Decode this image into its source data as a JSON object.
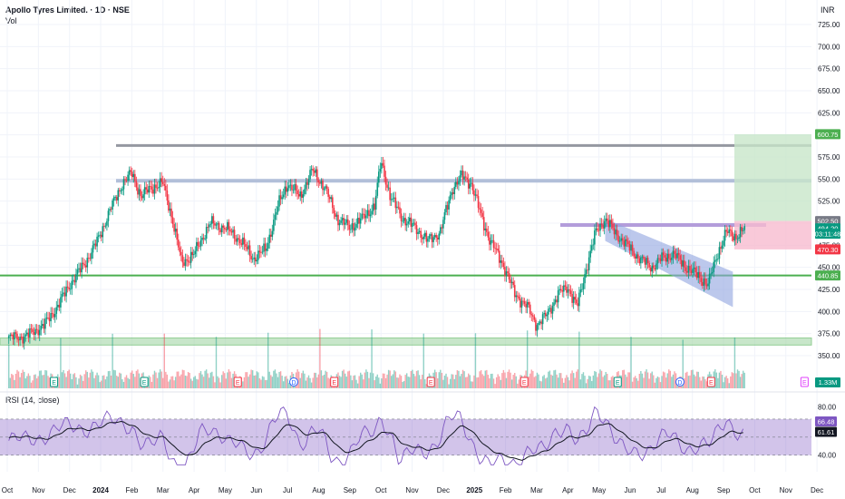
{
  "header": {
    "title": "Apollo Tyres Limited. · 1D · NSE",
    "volume_label": "Vol",
    "currency": "INR",
    "rsi_label": "RSI (14, close)"
  },
  "chart_data": [
    {
      "type": "candlestick",
      "title": "Apollo Tyres Limited. · 1D · NSE",
      "y_axis_labels": [
        "725.00",
        "700.00",
        "675.00",
        "650.00",
        "625.00",
        "600.00",
        "575.00",
        "550.00",
        "525.00",
        "500.00",
        "475.00",
        "450.00",
        "425.00",
        "400.00",
        "375.00",
        "350.00"
      ],
      "ylim": [
        350,
        725
      ],
      "x_axis_labels": [
        "Oct",
        "Nov",
        "Dec",
        "2024",
        "Feb",
        "Mar",
        "Apr",
        "May",
        "Jun",
        "Jul",
        "Aug",
        "Sep",
        "Oct",
        "Nov",
        "Dec",
        "2025",
        "Feb",
        "Mar",
        "Apr",
        "May",
        "Jun",
        "Jul",
        "Aug",
        "Sep",
        "Oct",
        "Nov",
        "Dec"
      ],
      "close_series": [
        {
          "t": 0,
          "v": 370
        },
        {
          "t": 0.6,
          "v": 372
        },
        {
          "t": 1.2,
          "v": 385
        },
        {
          "t": 1.6,
          "v": 405
        },
        {
          "t": 2.0,
          "v": 430
        },
        {
          "t": 2.5,
          "v": 455
        },
        {
          "t": 2.9,
          "v": 480
        },
        {
          "t": 3.3,
          "v": 515
        },
        {
          "t": 3.7,
          "v": 545
        },
        {
          "t": 4.0,
          "v": 557
        },
        {
          "t": 4.3,
          "v": 530
        },
        {
          "t": 4.6,
          "v": 540
        },
        {
          "t": 5.0,
          "v": 545
        },
        {
          "t": 5.3,
          "v": 505
        },
        {
          "t": 5.6,
          "v": 455
        },
        {
          "t": 6.0,
          "v": 465
        },
        {
          "t": 6.5,
          "v": 500
        },
        {
          "t": 7.0,
          "v": 495
        },
        {
          "t": 7.5,
          "v": 480
        },
        {
          "t": 7.9,
          "v": 460
        },
        {
          "t": 8.3,
          "v": 470
        },
        {
          "t": 8.7,
          "v": 520
        },
        {
          "t": 9.0,
          "v": 545
        },
        {
          "t": 9.4,
          "v": 530
        },
        {
          "t": 9.8,
          "v": 560
        },
        {
          "t": 10.2,
          "v": 540
        },
        {
          "t": 10.6,
          "v": 505
        },
        {
          "t": 11.0,
          "v": 495
        },
        {
          "t": 11.4,
          "v": 505
        },
        {
          "t": 11.8,
          "v": 520
        },
        {
          "t": 12.0,
          "v": 570
        },
        {
          "t": 12.3,
          "v": 530
        },
        {
          "t": 12.7,
          "v": 505
        },
        {
          "t": 13.1,
          "v": 495
        },
        {
          "t": 13.5,
          "v": 480
        },
        {
          "t": 13.9,
          "v": 490
        },
        {
          "t": 14.3,
          "v": 540
        },
        {
          "t": 14.6,
          "v": 553
        },
        {
          "t": 14.9,
          "v": 545
        },
        {
          "t": 15.2,
          "v": 510
        },
        {
          "t": 15.5,
          "v": 480
        },
        {
          "t": 15.9,
          "v": 455
        },
        {
          "t": 16.3,
          "v": 420
        },
        {
          "t": 16.7,
          "v": 405
        },
        {
          "t": 17.0,
          "v": 385
        },
        {
          "t": 17.3,
          "v": 395
        },
        {
          "t": 17.7,
          "v": 420
        },
        {
          "t": 18.0,
          "v": 428
        },
        {
          "t": 18.3,
          "v": 405
        },
        {
          "t": 18.6,
          "v": 450
        },
        {
          "t": 18.9,
          "v": 490
        },
        {
          "t": 19.2,
          "v": 505
        },
        {
          "t": 19.5,
          "v": 490
        },
        {
          "t": 19.9,
          "v": 475
        },
        {
          "t": 20.3,
          "v": 460
        },
        {
          "t": 20.7,
          "v": 450
        },
        {
          "t": 21.0,
          "v": 460
        },
        {
          "t": 21.4,
          "v": 465
        },
        {
          "t": 21.8,
          "v": 450
        },
        {
          "t": 22.2,
          "v": 440
        },
        {
          "t": 22.5,
          "v": 430
        },
        {
          "t": 22.8,
          "v": 465
        },
        {
          "t": 23.1,
          "v": 490
        },
        {
          "t": 23.4,
          "v": 485
        },
        {
          "t": 23.7,
          "v": 494.2
        }
      ],
      "horizontal_levels": [
        588,
        548,
        498,
        440.85
      ],
      "support_zone": [
        362,
        370
      ],
      "descending_channel": {
        "from": {
          "t": 19.2,
          "upper": 505,
          "lower": 480
        },
        "to": {
          "t": 23.3,
          "upper": 445,
          "lower": 405
        }
      },
      "position_tool": {
        "entry": 502.5,
        "target": 600.75,
        "stop": 470.3
      },
      "price_labels": [
        {
          "text": "600.75",
          "color": "#4caf50",
          "value": 600.75
        },
        {
          "text": "502.50",
          "color": "#787b86",
          "value": 502.5
        },
        {
          "text": "494.20",
          "color": "#089981",
          "value": 494.2
        },
        {
          "text": "03:11:48",
          "color": "#089981",
          "value": 488
        },
        {
          "text": "470.30",
          "color": "#f23645",
          "value": 470.3
        },
        {
          "text": "440.85",
          "color": "#4caf50",
          "value": 440.85
        }
      ],
      "event_markers": [
        {
          "t": 1.5,
          "kind": "E",
          "color": "#089981"
        },
        {
          "t": 4.4,
          "kind": "E",
          "color": "#089981"
        },
        {
          "t": 7.4,
          "kind": "E",
          "color": "#f23645"
        },
        {
          "t": 9.2,
          "kind": "D",
          "color": "#2962ff"
        },
        {
          "t": 10.5,
          "kind": "E",
          "color": "#f23645"
        },
        {
          "t": 13.6,
          "kind": "E",
          "color": "#f23645"
        },
        {
          "t": 16.6,
          "kind": "E",
          "color": "#f23645"
        },
        {
          "t": 19.6,
          "kind": "E",
          "color": "#089981"
        },
        {
          "t": 21.6,
          "kind": "D",
          "color": "#2962ff"
        },
        {
          "t": 22.6,
          "kind": "E",
          "color": "#f23645"
        },
        {
          "t": 25.6,
          "kind": "E",
          "color": "#e040fb"
        }
      ],
      "volume_label": "1.33M"
    },
    {
      "type": "line",
      "title": "RSI (14, close)",
      "y_axis_labels": [
        "80.00",
        "40.00"
      ],
      "ylim": [
        30,
        85
      ],
      "band": [
        40,
        70
      ],
      "values_label_rsi": "66.48",
      "values_label_ma": "61.61"
    }
  ],
  "colors": {
    "bull": "#089981",
    "bear": "#f23645",
    "grid": "#f0f3fa",
    "rsi_line": "#7e57c2",
    "rsi_band": "#7e57c2",
    "level_gray": "#9598a1",
    "level_blue": "#b2bfd9",
    "level_purple": "#b39ddb",
    "level_green": "#4caf50",
    "zone_green": "#a5d6a7",
    "channel": "#90a4e0",
    "target_fill": "#c8e6c9",
    "stop_fill": "#f8bbd0"
  }
}
